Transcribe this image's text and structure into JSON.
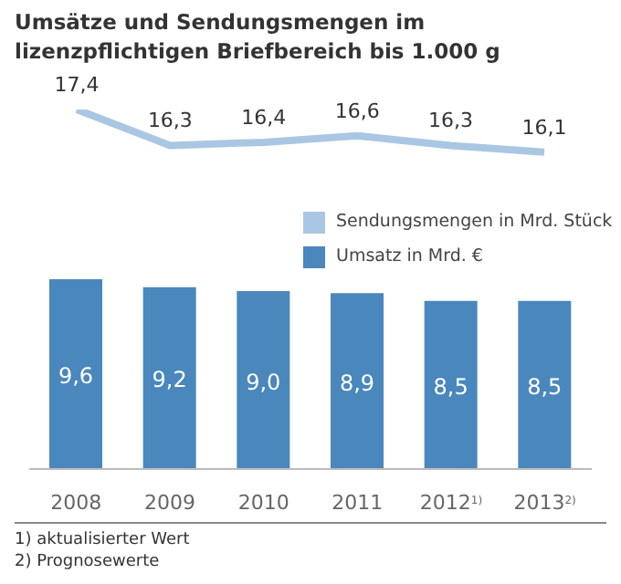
{
  "chart_data": [
    {
      "type": "line",
      "title": "Umsätze und Sendungsmengen im lizenzpflichtigen Briefbereich bis 1.000 g",
      "categories": [
        null,
        null,
        null,
        null,
        null,
        null
      ],
      "series": [
        {
          "name": "Sendungsmengen in Mrd. Stück",
          "color": "#a9c7e2",
          "values": [
            17.4,
            16.3,
            16.4,
            16.6,
            16.3,
            16.1
          ],
          "value_labels": [
            "17,4",
            "16,3",
            "16,4",
            "16,6",
            "16,3",
            "16,1"
          ]
        }
      ],
      "tick_labels": false,
      "marker": "none",
      "legend": "bottom right"
    },
    {
      "type": "bar",
      "categories": [
        "2008",
        "2009",
        "2010",
        "2011",
        "2012$^{1)}$",
        "2013$^{2)}$"
      ],
      "series": [
        {
          "name": "Umsatz in Mrd. €",
          "color": "#4a87bd",
          "values": [
            9.6,
            9.2,
            9.0,
            8.9,
            8.5,
            8.5
          ],
          "value_labels": [
            "9,6",
            "9,2",
            "9,0",
            "8,9",
            "8,5",
            "8,5"
          ]
        }
      ],
      "tick_labels": "x",
      "legend": "top right",
      "annotations": [
        "1) aktualisierter Wert",
        "2) Prognosewerte"
      ]
    }
  ]
}
